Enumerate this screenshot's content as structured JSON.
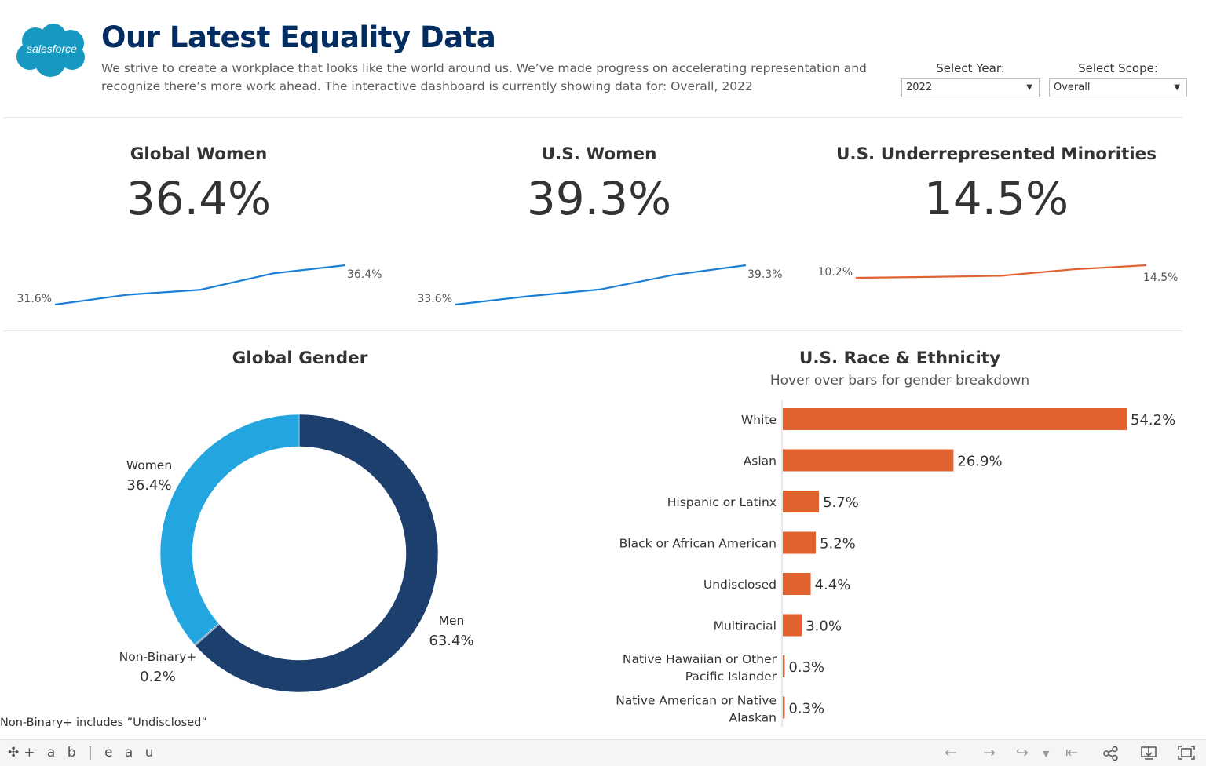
{
  "header": {
    "logo_text": "salesforce",
    "title": "Our Latest Equality Data",
    "subtitle_line1": "We strive to create a workplace that looks like the world around us. We’ve made progress on accelerating representation and",
    "subtitle_line2": "recognize there’s more work ahead. The interactive dashboard is currently showing data for: Overall, 2022"
  },
  "filters": {
    "year": {
      "label": "Select Year:",
      "value": "2022"
    },
    "scope": {
      "label": "Select Scope:",
      "value": "Overall"
    }
  },
  "kpis": [
    {
      "title": "Global Women",
      "value": "36.4%",
      "start_label": "31.6%",
      "end_label": "36.4%",
      "color": "#1b7fd6"
    },
    {
      "title": "U.S. Women",
      "value": "39.3%",
      "start_label": "33.6%",
      "end_label": "39.3%",
      "color": "#1b7fd6"
    },
    {
      "title": "U.S. Underrepresented Minorities",
      "value": "14.5%",
      "start_label": "10.2%",
      "end_label": "14.5%",
      "color": "#e0622f"
    }
  ],
  "global_gender": {
    "title": "Global Gender"
  },
  "race": {
    "title": "U.S. Race & Ethnicity",
    "subtitle": "Hover over bars for gender breakdown"
  },
  "footnote": "Non-Binary+ includes ”Undisclosed”",
  "toolbar": {
    "brand": "+ a b | e a u"
  },
  "icons": [
    "tableau-logo-icon",
    "undo-icon",
    "redo-icon",
    "revert-icon",
    "revert-dropdown-icon",
    "reset-icon",
    "share-icon",
    "download-icon",
    "fullscreen-icon"
  ],
  "chart_data": [
    {
      "type": "line",
      "series": [
        {
          "values": [
            31.6,
            32.8,
            33.4,
            35.4,
            36.4
          ]
        }
      ],
      "ylim": [
        31.6,
        36.4
      ],
      "start_label": "31.6%",
      "end_label": "36.4%",
      "color": "#1b7fd6"
    },
    {
      "type": "line",
      "series": [
        {
          "values": [
            33.6,
            34.8,
            35.8,
            37.9,
            39.3
          ]
        }
      ],
      "ylim": [
        33.6,
        39.3
      ],
      "start_label": "33.6%",
      "end_label": "39.3%",
      "color": "#1b7fd6"
    },
    {
      "type": "line",
      "series": [
        {
          "values": [
            10.2,
            10.5,
            10.9,
            13.1,
            14.5
          ]
        }
      ],
      "ylim": [
        10.2,
        14.5
      ],
      "start_label": "10.2%",
      "end_label": "14.5%",
      "color": "#e0622f"
    },
    {
      "type": "pie",
      "title": "Global Gender",
      "slices": [
        {
          "label": "Men",
          "value": 63.4,
          "value_label": "63.4%",
          "color": "#1c3f6e"
        },
        {
          "label": "Non-Binary+",
          "value": 0.2,
          "value_label": "0.2%",
          "color": "#8fa9c0"
        },
        {
          "label": "Women",
          "value": 36.4,
          "value_label": "36.4%",
          "color": "#23a6df"
        }
      ]
    },
    {
      "type": "bar",
      "orientation": "horizontal",
      "title": "U.S. Race & Ethnicity",
      "subtitle": "Hover over bars for gender breakdown",
      "categories": [
        "White",
        "Asian",
        "Hispanic or Latinx",
        "Black or African American",
        "Undisclosed",
        "Multiracial",
        "Native Hawaiian or Other\nPacific Islander",
        "Native American or Native\nAlaskan"
      ],
      "values": [
        54.2,
        26.9,
        5.7,
        5.2,
        4.4,
        3.0,
        0.3,
        0.3
      ],
      "value_labels": [
        "54.2%",
        "26.9%",
        "5.7%",
        "5.2%",
        "4.4%",
        "3.0%",
        "0.3%",
        "0.3%"
      ],
      "color": "#e0622f",
      "xlim": [
        0,
        54.2
      ]
    }
  ]
}
